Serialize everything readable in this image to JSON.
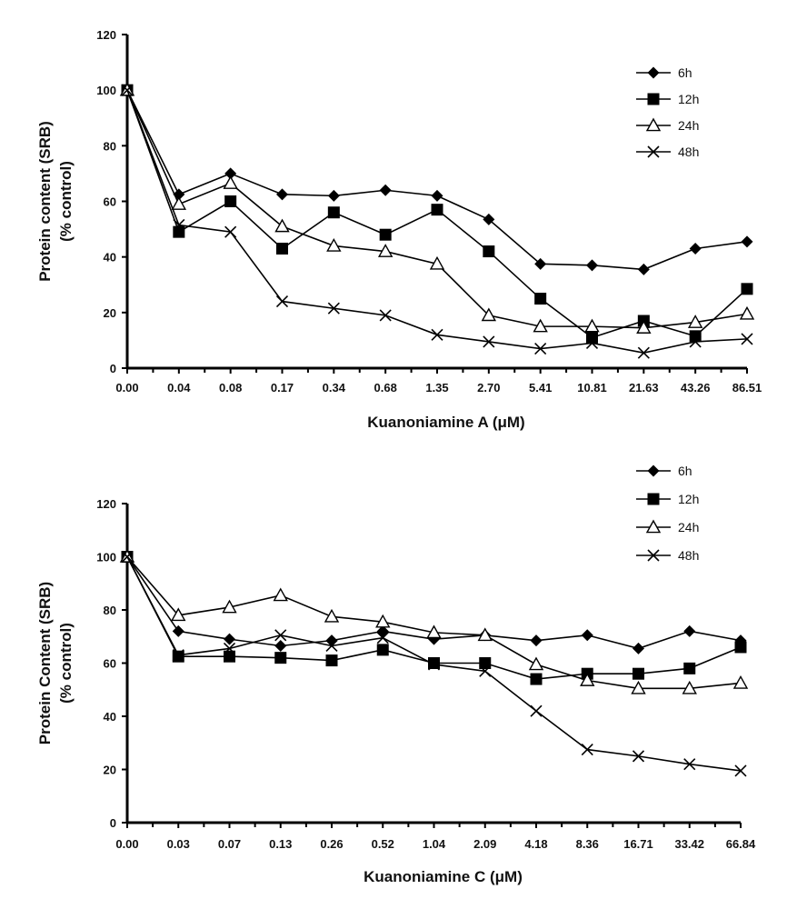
{
  "chart_data": [
    {
      "type": "line",
      "title": "",
      "xlabel": "Kuanoniamine A (μM)",
      "ylabel_line1": "Protein content (SRB)",
      "ylabel_line2": "(% control)",
      "categories": [
        "0.00",
        "0.04",
        "0.08",
        "0.17",
        "0.34",
        "0.68",
        "1.35",
        "2.70",
        "5.41",
        "10.81",
        "21.63",
        "43.26",
        "86.51"
      ],
      "ylim": [
        0,
        120
      ],
      "yticks": [
        "0",
        "20",
        "40",
        "60",
        "80",
        "100",
        "120"
      ],
      "legend_position": "top-right",
      "series": [
        {
          "name": "6h",
          "marker": "diamond",
          "values": [
            100,
            62.5,
            70,
            62.5,
            62,
            64,
            62,
            53.5,
            37.5,
            37,
            35.5,
            43,
            45.5
          ]
        },
        {
          "name": "12h",
          "marker": "square",
          "values": [
            100,
            49,
            60,
            43,
            56,
            48,
            57,
            42,
            25,
            11,
            17,
            11.5,
            28.5
          ]
        },
        {
          "name": "24h",
          "marker": "triangle",
          "values": [
            100,
            59,
            66.5,
            51,
            44,
            42,
            37.5,
            19,
            15,
            15,
            14.5,
            16.5,
            19.5
          ]
        },
        {
          "name": "48h",
          "marker": "x",
          "values": [
            100,
            51.5,
            49,
            24,
            21.5,
            19,
            12,
            9.5,
            7,
            9,
            5.5,
            9.5,
            10.5
          ]
        }
      ]
    },
    {
      "type": "line",
      "title": "",
      "xlabel": "Kuanoniamine C (μM)",
      "ylabel_line1": "Protein Content (SRB)",
      "ylabel_line2": "(% control)",
      "categories": [
        "0.00",
        "0.03",
        "0.07",
        "0.13",
        "0.26",
        "0.52",
        "1.04",
        "2.09",
        "4.18",
        "8.36",
        "16.71",
        "33.42",
        "66.84"
      ],
      "ylim": [
        0,
        120
      ],
      "yticks": [
        "0",
        "20",
        "40",
        "60",
        "80",
        "100",
        "120"
      ],
      "legend_position": "top-right",
      "series": [
        {
          "name": "6h",
          "marker": "diamond",
          "values": [
            100,
            72,
            69,
            66.5,
            68.5,
            72,
            69,
            70.5,
            68.5,
            70.5,
            65.5,
            72,
            68.5
          ]
        },
        {
          "name": "12h",
          "marker": "square",
          "values": [
            100,
            62.5,
            62.5,
            62,
            61,
            65,
            60,
            60,
            54,
            56,
            56,
            58,
            66
          ]
        },
        {
          "name": "24h",
          "marker": "triangle",
          "values": [
            100,
            78,
            81,
            85.5,
            77.5,
            75.5,
            71.5,
            70.5,
            59.5,
            53.5,
            50.5,
            50.5,
            52.5
          ]
        },
        {
          "name": "48h",
          "marker": "x",
          "values": [
            100,
            63,
            65.5,
            70.5,
            66.5,
            69.5,
            59.5,
            57,
            42,
            27.5,
            25,
            22,
            19.5
          ]
        }
      ]
    }
  ]
}
